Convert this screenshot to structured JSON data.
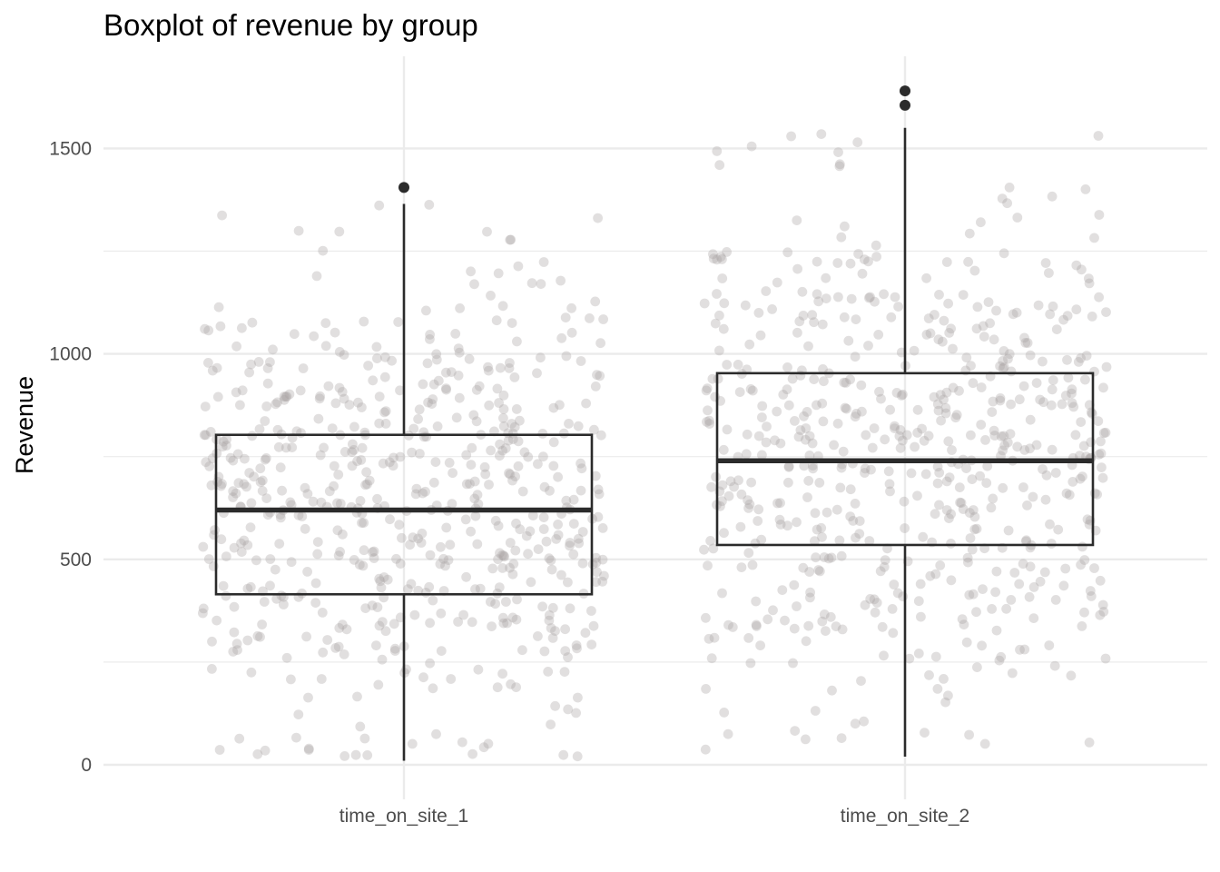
{
  "chart_data": {
    "type": "boxplot",
    "title": "Boxplot of revenue by group",
    "xlabel": "",
    "ylabel": "Revenue",
    "ylim": [
      -70,
      1720
    ],
    "yticks": [
      0,
      500,
      1000,
      1500
    ],
    "grid": true,
    "legend": "none",
    "categories": [
      "time_on_site_1",
      "time_on_site_2"
    ],
    "boxes": [
      {
        "category": "time_on_site_1",
        "whisker_low": 10,
        "q1": 415,
        "median": 620,
        "q3": 803,
        "whisker_high": 1365,
        "outliers": [
          1405
        ]
      },
      {
        "category": "time_on_site_2",
        "whisker_low": 20,
        "q1": 535,
        "median": 740,
        "q3": 953,
        "whisker_high": 1550,
        "outliers": [
          1605,
          1640
        ]
      }
    ],
    "jitter_points_per_group": 600,
    "colors": {
      "box": "#2b2b2b",
      "points": "#a9a3a3",
      "grid": "#ebebeb",
      "text": "#4d4d4d"
    }
  }
}
